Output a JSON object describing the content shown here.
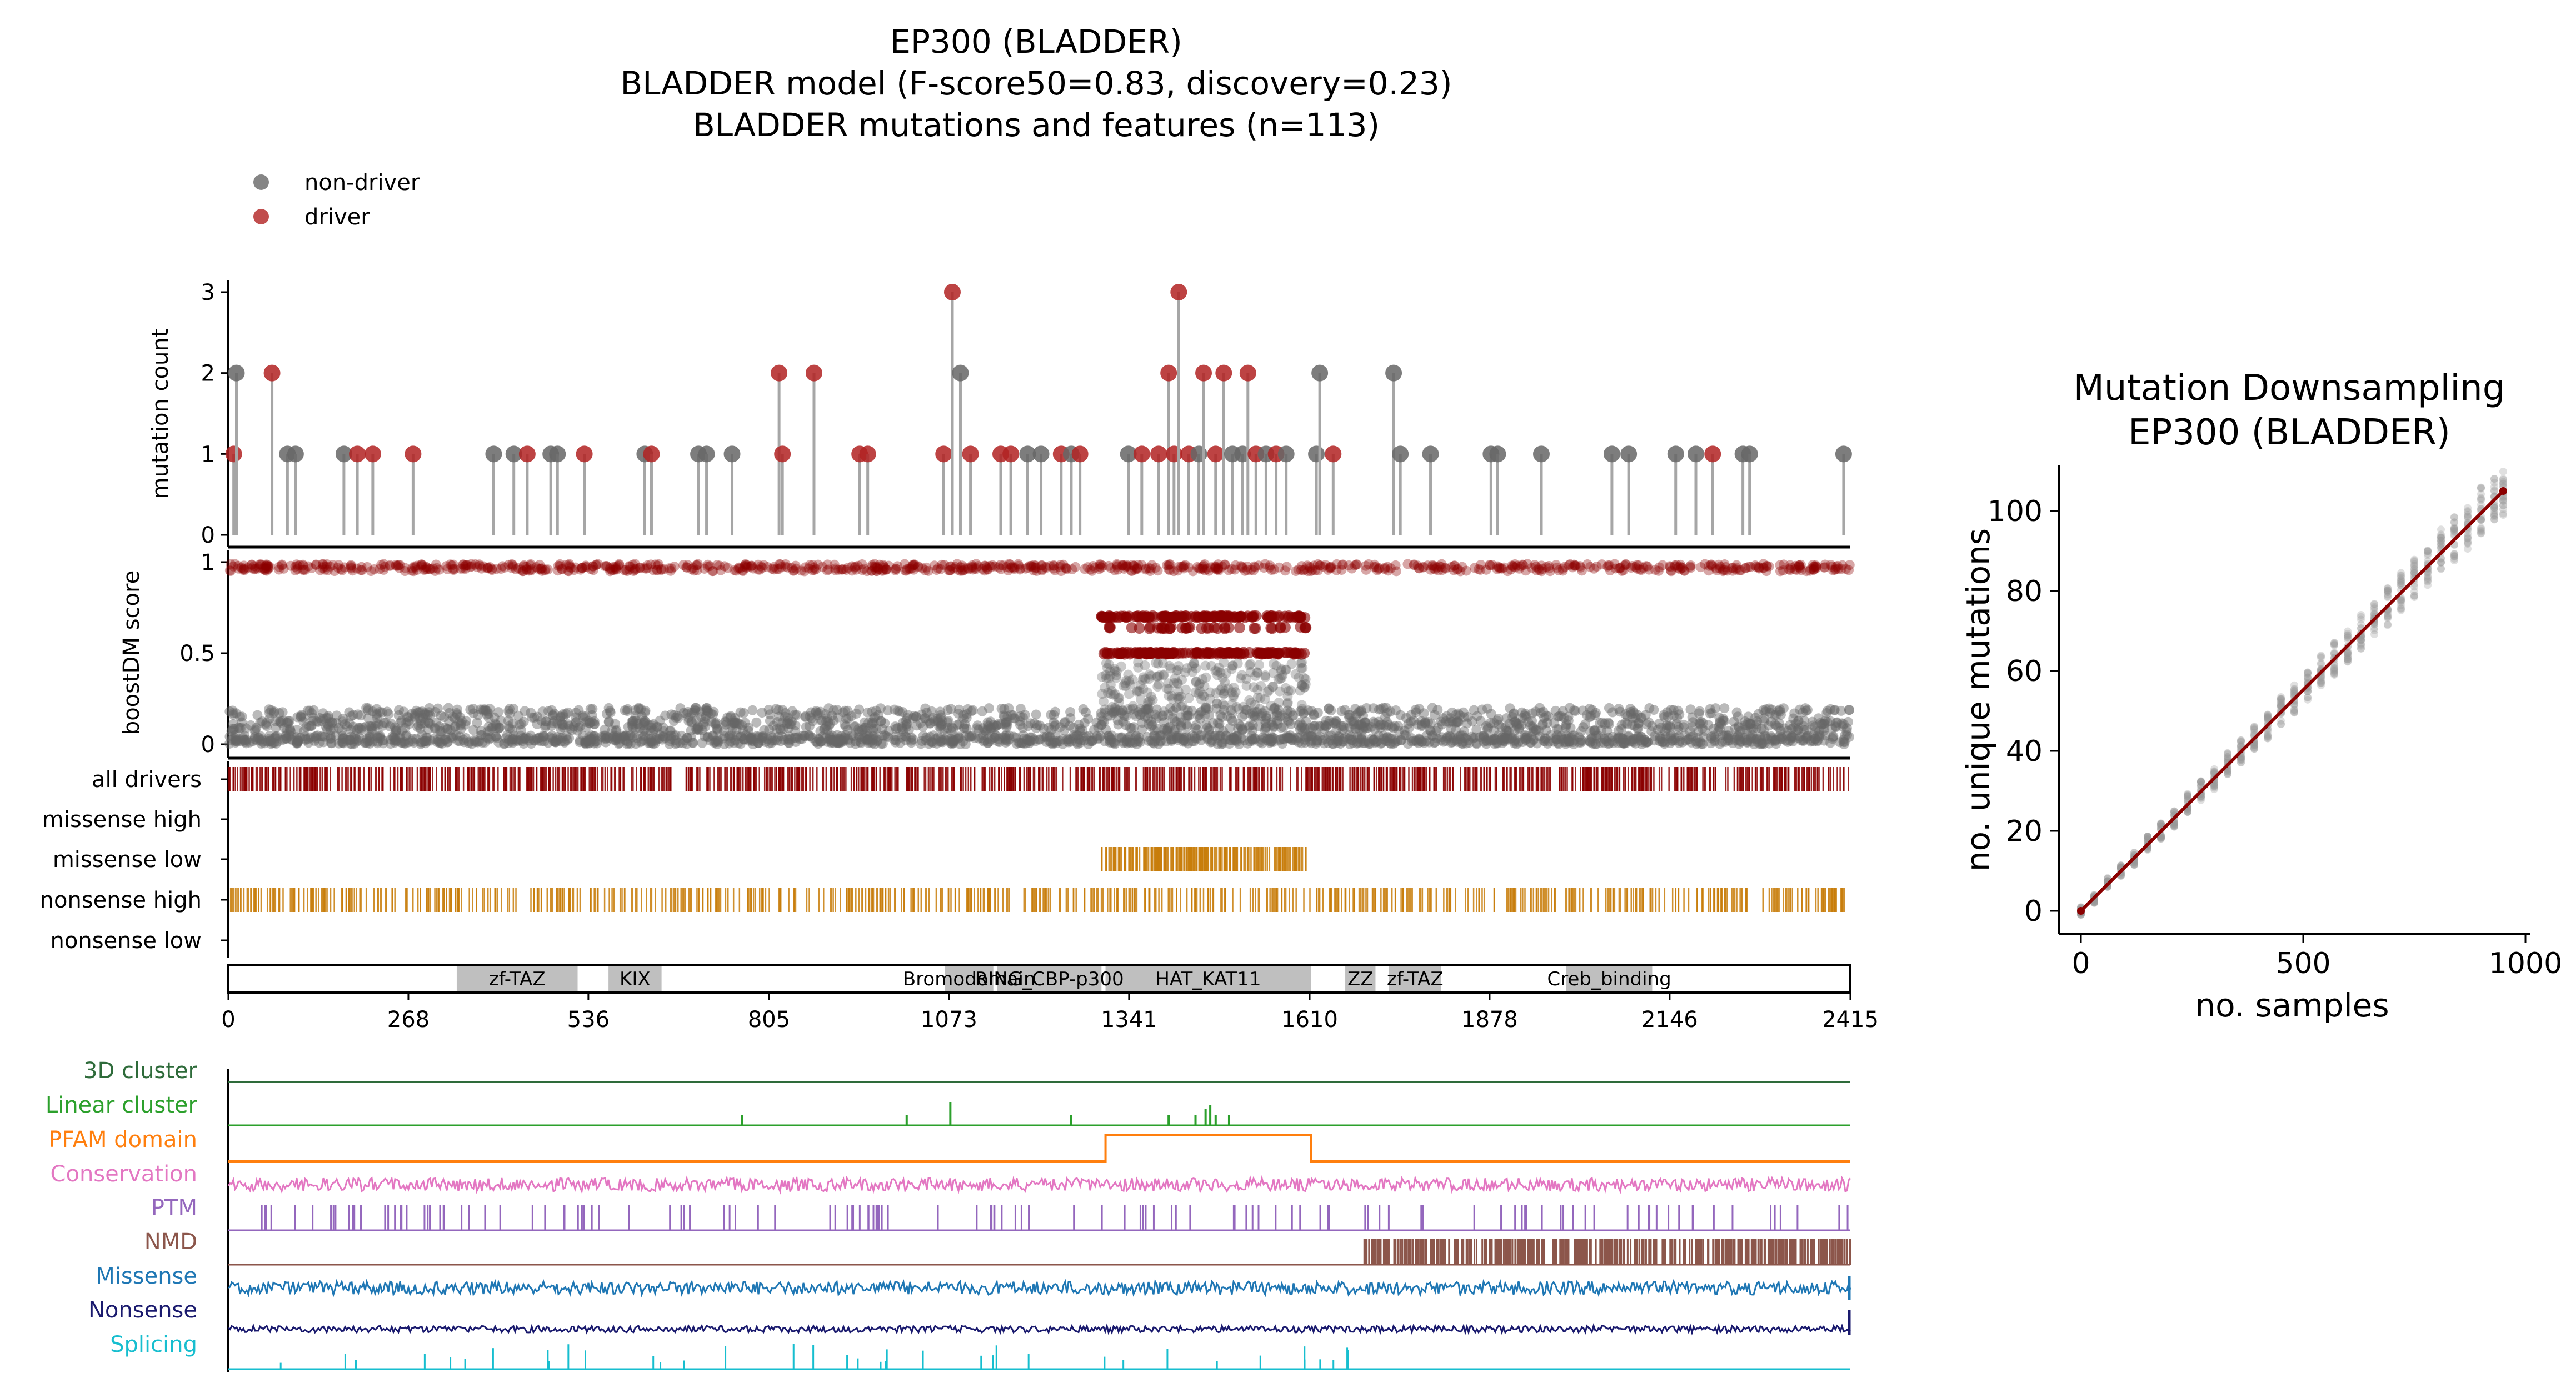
{
  "figure": {
    "title_lines": [
      "EP300 (BLADDER)",
      "BLADDER model (F-score50=0.83, discovery=0.23)",
      "BLADDER mutations and features (n=113)"
    ],
    "legend": [
      {
        "label": "non-driver",
        "color": "#666666"
      },
      {
        "label": "driver",
        "color": "#b22222"
      }
    ]
  },
  "colors": {
    "driver": "#b22222",
    "driver_dark": "#8b0000",
    "nondriver": "#666666",
    "stem": "#a6a6a6",
    "orange_bars": "#c87d0a",
    "domain_fill": "#bfbfbf"
  },
  "chart_data": [
    {
      "id": "mutation-count",
      "type": "scatter",
      "subtype": "lollipop",
      "ylabel": "mutation count",
      "xlim": [
        0,
        2415
      ],
      "ylim": [
        0,
        3
      ],
      "yticks": [
        "0",
        "1",
        "2",
        "3"
      ],
      "points": [
        {
          "pos": 8,
          "count": 1,
          "driver": true
        },
        {
          "pos": 12,
          "count": 2,
          "driver": false
        },
        {
          "pos": 65,
          "count": 2,
          "driver": true
        },
        {
          "pos": 88,
          "count": 1,
          "driver": false
        },
        {
          "pos": 100,
          "count": 1,
          "driver": false
        },
        {
          "pos": 172,
          "count": 1,
          "driver": false
        },
        {
          "pos": 192,
          "count": 1,
          "driver": true
        },
        {
          "pos": 215,
          "count": 1,
          "driver": true
        },
        {
          "pos": 275,
          "count": 1,
          "driver": true
        },
        {
          "pos": 395,
          "count": 1,
          "driver": false
        },
        {
          "pos": 425,
          "count": 1,
          "driver": false
        },
        {
          "pos": 445,
          "count": 1,
          "driver": true
        },
        {
          "pos": 480,
          "count": 1,
          "driver": false
        },
        {
          "pos": 490,
          "count": 1,
          "driver": false
        },
        {
          "pos": 530,
          "count": 1,
          "driver": true
        },
        {
          "pos": 620,
          "count": 1,
          "driver": false
        },
        {
          "pos": 630,
          "count": 1,
          "driver": true
        },
        {
          "pos": 700,
          "count": 1,
          "driver": false
        },
        {
          "pos": 712,
          "count": 1,
          "driver": false
        },
        {
          "pos": 750,
          "count": 1,
          "driver": false
        },
        {
          "pos": 820,
          "count": 2,
          "driver": true
        },
        {
          "pos": 825,
          "count": 1,
          "driver": true
        },
        {
          "pos": 872,
          "count": 2,
          "driver": true
        },
        {
          "pos": 940,
          "count": 1,
          "driver": true
        },
        {
          "pos": 952,
          "count": 1,
          "driver": true
        },
        {
          "pos": 1065,
          "count": 1,
          "driver": true
        },
        {
          "pos": 1078,
          "count": 3,
          "driver": true
        },
        {
          "pos": 1090,
          "count": 2,
          "driver": false
        },
        {
          "pos": 1105,
          "count": 1,
          "driver": true
        },
        {
          "pos": 1150,
          "count": 1,
          "driver": true
        },
        {
          "pos": 1165,
          "count": 1,
          "driver": true
        },
        {
          "pos": 1190,
          "count": 1,
          "driver": false
        },
        {
          "pos": 1210,
          "count": 1,
          "driver": false
        },
        {
          "pos": 1240,
          "count": 1,
          "driver": true
        },
        {
          "pos": 1255,
          "count": 1,
          "driver": false
        },
        {
          "pos": 1268,
          "count": 1,
          "driver": true
        },
        {
          "pos": 1340,
          "count": 1,
          "driver": false
        },
        {
          "pos": 1360,
          "count": 1,
          "driver": true
        },
        {
          "pos": 1385,
          "count": 1,
          "driver": true
        },
        {
          "pos": 1400,
          "count": 2,
          "driver": true
        },
        {
          "pos": 1408,
          "count": 1,
          "driver": true
        },
        {
          "pos": 1415,
          "count": 3,
          "driver": true
        },
        {
          "pos": 1430,
          "count": 1,
          "driver": true
        },
        {
          "pos": 1445,
          "count": 1,
          "driver": false
        },
        {
          "pos": 1452,
          "count": 2,
          "driver": true
        },
        {
          "pos": 1470,
          "count": 1,
          "driver": true
        },
        {
          "pos": 1482,
          "count": 2,
          "driver": true
        },
        {
          "pos": 1495,
          "count": 1,
          "driver": false
        },
        {
          "pos": 1510,
          "count": 1,
          "driver": false
        },
        {
          "pos": 1518,
          "count": 2,
          "driver": true
        },
        {
          "pos": 1530,
          "count": 1,
          "driver": true
        },
        {
          "pos": 1545,
          "count": 1,
          "driver": false
        },
        {
          "pos": 1560,
          "count": 1,
          "driver": true
        },
        {
          "pos": 1575,
          "count": 1,
          "driver": false
        },
        {
          "pos": 1620,
          "count": 1,
          "driver": false
        },
        {
          "pos": 1625,
          "count": 2,
          "driver": false
        },
        {
          "pos": 1645,
          "count": 1,
          "driver": true
        },
        {
          "pos": 1735,
          "count": 2,
          "driver": false
        },
        {
          "pos": 1745,
          "count": 1,
          "driver": false
        },
        {
          "pos": 1790,
          "count": 1,
          "driver": false
        },
        {
          "pos": 1880,
          "count": 1,
          "driver": false
        },
        {
          "pos": 1890,
          "count": 1,
          "driver": false
        },
        {
          "pos": 1955,
          "count": 1,
          "driver": false
        },
        {
          "pos": 2060,
          "count": 1,
          "driver": false
        },
        {
          "pos": 2085,
          "count": 1,
          "driver": false
        },
        {
          "pos": 2155,
          "count": 1,
          "driver": false
        },
        {
          "pos": 2185,
          "count": 1,
          "driver": false
        },
        {
          "pos": 2210,
          "count": 1,
          "driver": true
        },
        {
          "pos": 2255,
          "count": 1,
          "driver": false
        },
        {
          "pos": 2265,
          "count": 1,
          "driver": false
        },
        {
          "pos": 2405,
          "count": 1,
          "driver": false
        }
      ]
    },
    {
      "id": "boostdm-score",
      "type": "scatter",
      "ylabel": "boostDM score",
      "xlim": [
        0,
        2415
      ],
      "ylim": [
        0,
        1
      ],
      "yticks": [
        "0",
        "0.5",
        "1"
      ],
      "series": [
        {
          "name": "driver predictions",
          "score_range": [
            0.95,
            1.0
          ],
          "x_range": [
            0,
            2415
          ],
          "color": "#8b0000"
        },
        {
          "name": "high driver band",
          "score": 0.7,
          "x_range": [
            1300,
            1605
          ],
          "color": "#8b0000"
        },
        {
          "name": "mid driver band",
          "score": 0.64,
          "x_range": [
            1300,
            1605
          ],
          "color": "#8b0000"
        },
        {
          "name": "driver band",
          "score": 0.5,
          "x_range": [
            1300,
            1605
          ],
          "color": "#8b0000"
        },
        {
          "name": "non-driver cloud",
          "score_range": [
            0.0,
            0.2
          ],
          "x_range": [
            0,
            2415
          ],
          "color": "#666666"
        },
        {
          "name": "non-driver elevated",
          "score_range": [
            0.1,
            0.45
          ],
          "x_range": [
            1300,
            1605
          ],
          "color": "#666666"
        }
      ]
    },
    {
      "id": "driver-tracks",
      "type": "table",
      "rows": [
        {
          "label": "all drivers",
          "color": "#8b0000",
          "ranges": [
            [
              0,
              2415
            ]
          ]
        },
        {
          "label": "missense high",
          "color": "#c87d0a",
          "ranges": []
        },
        {
          "label": "missense low",
          "color": "#c87d0a",
          "ranges": [
            [
              1300,
              1605
            ]
          ]
        },
        {
          "label": "nonsense high",
          "color": "#c87d0a",
          "ranges": [
            [
              0,
              2415
            ]
          ]
        },
        {
          "label": "nonsense low",
          "color": "#c87d0a",
          "ranges": []
        }
      ]
    },
    {
      "id": "protein-domains",
      "type": "bar",
      "xlim": [
        0,
        2415
      ],
      "xticks": [
        "0",
        "268",
        "536",
        "805",
        "1073",
        "1341",
        "1610",
        "1878",
        "2146",
        "2415"
      ],
      "domains": [
        {
          "name": "zf-TAZ",
          "start": 340,
          "end": 520
        },
        {
          "name": "KIX",
          "start": 566,
          "end": 645
        },
        {
          "name": "Bromodomain",
          "start": 1067,
          "end": 1139
        },
        {
          "name": "RING_CBP-p300",
          "start": 1145,
          "end": 1300
        },
        {
          "name": "HAT_KAT11",
          "start": 1306,
          "end": 1612
        },
        {
          "name": "ZZ",
          "start": 1663,
          "end": 1708
        },
        {
          "name": "zf-TAZ",
          "start": 1728,
          "end": 1806
        },
        {
          "name": "Creb_binding",
          "start": 1992,
          "end": 2120
        }
      ]
    },
    {
      "id": "feature-tracks",
      "type": "line",
      "xlim": [
        0,
        2415
      ],
      "tracks": [
        {
          "label": "3D cluster",
          "color": "#2e6b3a",
          "kind": "flat"
        },
        {
          "label": "Linear cluster",
          "color": "#2ca02c",
          "kind": "peaks",
          "peaks": [
            [
              765,
              0.3
            ],
            [
              1010,
              0.3
            ],
            [
              1075,
              0.7
            ],
            [
              1255,
              0.3
            ],
            [
              1400,
              0.3
            ],
            [
              1440,
              0.3
            ],
            [
              1455,
              0.5
            ],
            [
              1462,
              0.6
            ],
            [
              1470,
              0.3
            ],
            [
              1490,
              0.3
            ]
          ]
        },
        {
          "label": "PFAM domain",
          "color": "#ff7f0e",
          "kind": "step",
          "range": [
            1306,
            1612
          ]
        },
        {
          "label": "Conservation",
          "color": "#e377c2",
          "kind": "noise",
          "level": 0.5
        },
        {
          "label": "PTM",
          "color": "#9467bd",
          "kind": "spikes"
        },
        {
          "label": "NMD",
          "color": "#8c564b",
          "kind": "dense",
          "range": [
            1690,
            2415
          ]
        },
        {
          "label": "Missense",
          "color": "#1f77b4",
          "kind": "noise",
          "level": 0.5
        },
        {
          "label": "Nonsense",
          "color": "#1a1a6e",
          "kind": "noise",
          "level": 0.25
        },
        {
          "label": "Splicing",
          "color": "#17becf",
          "kind": "spikes_sparse"
        }
      ]
    },
    {
      "id": "downsampling",
      "type": "scatter",
      "title_lines": [
        "Mutation Downsampling",
        "EP300 (BLADDER)"
      ],
      "xlabel": "no. samples",
      "ylabel": "no. unique mutations",
      "xlim": [
        -50,
        1010
      ],
      "ylim": [
        -5,
        111
      ],
      "xticks": [
        "0",
        "500",
        "1000"
      ],
      "yticks": [
        "0",
        "20",
        "40",
        "60",
        "80",
        "100"
      ],
      "fit_line": {
        "x": [
          0,
          950
        ],
        "y": [
          0,
          105
        ],
        "color": "#8b0000"
      },
      "sample_sizes": [
        0,
        30,
        60,
        90,
        120,
        150,
        180,
        210,
        240,
        270,
        300,
        330,
        360,
        390,
        420,
        450,
        480,
        510,
        540,
        570,
        600,
        630,
        660,
        690,
        720,
        750,
        780,
        810,
        840,
        870,
        900,
        930,
        950
      ],
      "mean_unique": [
        0,
        3,
        7,
        10,
        13,
        17,
        20,
        23,
        27,
        30,
        33,
        37,
        40,
        43,
        46,
        50,
        53,
        56,
        60,
        63,
        66,
        70,
        73,
        76,
        80,
        83,
        86,
        90,
        93,
        96,
        100,
        103,
        105
      ]
    }
  ]
}
